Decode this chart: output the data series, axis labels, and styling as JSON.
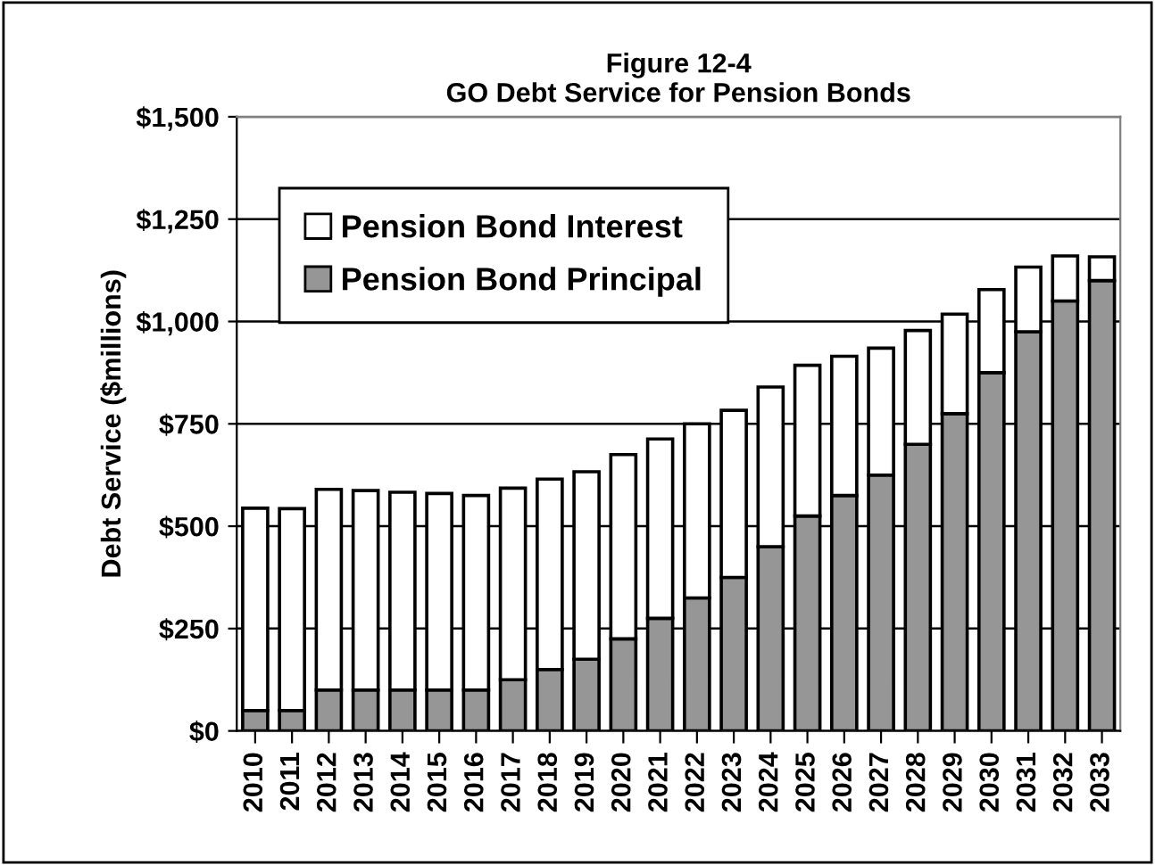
{
  "chart_data": {
    "type": "bar",
    "stacked": true,
    "title": "Figure 12-4\nGO Debt Service for Pension Bonds",
    "ylabel": "Debt Service ($millions)",
    "categories": [
      "2010",
      "2011",
      "2012",
      "2013",
      "2014",
      "2015",
      "2016",
      "2017",
      "2018",
      "2019",
      "2020",
      "2021",
      "2022",
      "2023",
      "2024",
      "2025",
      "2026",
      "2027",
      "2028",
      "2029",
      "2030",
      "2031",
      "2032",
      "2033"
    ],
    "series": [
      {
        "name": "Pension Bond Principal",
        "color": "#969696",
        "values": [
          50,
          50,
          100,
          100,
          100,
          100,
          100,
          125,
          150,
          175,
          225,
          275,
          325,
          375,
          450,
          525,
          575,
          625,
          700,
          775,
          875,
          975,
          1050,
          1100
        ]
      },
      {
        "name": "Pension Bond Interest",
        "color": "#ffffff",
        "values": [
          494,
          493,
          490,
          487,
          483,
          480,
          475,
          468,
          465,
          458,
          450,
          438,
          425,
          408,
          390,
          368,
          340,
          310,
          278,
          243,
          203,
          158,
          110,
          58
        ]
      }
    ],
    "ylim": [
      0,
      1500
    ],
    "yticks": [
      {
        "value": 0,
        "label": "$0"
      },
      {
        "value": 250,
        "label": "$250"
      },
      {
        "value": 500,
        "label": "$500"
      },
      {
        "value": 750,
        "label": "$750"
      },
      {
        "value": 1000,
        "label": "$1,000"
      },
      {
        "value": 1250,
        "label": "$1,250"
      },
      {
        "value": 1500,
        "label": "$1,500"
      }
    ],
    "grid": "y",
    "legend": "top left"
  }
}
